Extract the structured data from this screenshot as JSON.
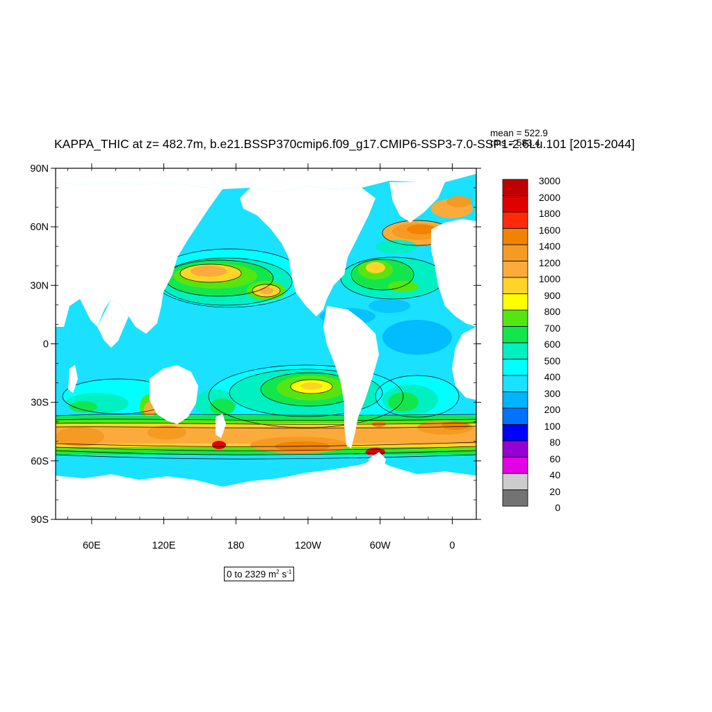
{
  "title": "KAPPA_THIC at z= 482.7m, b.e21.BSSP370cmip6.f09_g17.CMIP6-SSP3-7.0-SSP1-2.6Lu.101 [2015-2044]",
  "stats": {
    "mean": "mean = 522.9",
    "rms": "rms = 583.4"
  },
  "range_label": {
    "prefix": "0 to 2329 m",
    "sup1": "2",
    "mid": " s",
    "sup2": "-1"
  },
  "axes": {
    "lat_ticks": [
      "90N",
      "60N",
      "30N",
      "0",
      "30S",
      "60S",
      "90S"
    ],
    "lon_ticks": [
      "60E",
      "120E",
      "180",
      "120W",
      "60W",
      "0"
    ]
  },
  "colorbar": {
    "levels": [
      "3000",
      "2000",
      "1800",
      "1600",
      "1400",
      "1200",
      "1000",
      "900",
      "800",
      "700",
      "600",
      "500",
      "400",
      "300",
      "200",
      "100",
      "80",
      "60",
      "40",
      "20",
      "0"
    ],
    "colors": [
      "#c00000",
      "#e00000",
      "#ff2a0a",
      "#f08300",
      "#f59a22",
      "#fbab3c",
      "#ffd42a",
      "#ffff00",
      "#55e611",
      "#13e64d",
      "#00f0c2",
      "#00ffff",
      "#1ae1ff",
      "#00b4ff",
      "#0073ff",
      "#0000ff",
      "#9600d2",
      "#e600e6",
      "#cccccc",
      "#737373"
    ]
  },
  "map": {
    "ocean_base_color": "#1ae1ff",
    "land_color": "#ffffff"
  }
}
